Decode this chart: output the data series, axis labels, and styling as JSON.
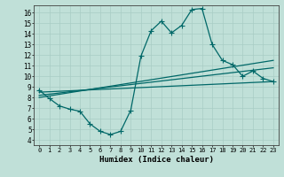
{
  "title": "",
  "xlabel": "Humidex (Indice chaleur)",
  "ylabel": "",
  "bg_color": "#c0e0d8",
  "grid_color": "#a8ccc4",
  "line_color": "#006868",
  "xlim": [
    -0.5,
    23.5
  ],
  "ylim": [
    3.5,
    16.7
  ],
  "yticks": [
    4,
    5,
    6,
    7,
    8,
    9,
    10,
    11,
    12,
    13,
    14,
    15,
    16
  ],
  "xticks": [
    0,
    1,
    2,
    3,
    4,
    5,
    6,
    7,
    8,
    9,
    10,
    11,
    12,
    13,
    14,
    15,
    16,
    17,
    18,
    19,
    20,
    21,
    22,
    23
  ],
  "series1_x": [
    0,
    1,
    2,
    3,
    4,
    5,
    6,
    7,
    8,
    9,
    10,
    11,
    12,
    13,
    14,
    15,
    16,
    17,
    18,
    19,
    20,
    21,
    22,
    23
  ],
  "series1_y": [
    8.7,
    7.9,
    7.2,
    6.9,
    6.7,
    5.5,
    4.8,
    4.5,
    4.8,
    6.8,
    11.9,
    14.3,
    15.2,
    14.1,
    14.8,
    16.3,
    16.4,
    13.0,
    11.5,
    11.1,
    10.0,
    10.5,
    9.8,
    9.5
  ],
  "series2_x": [
    0,
    23
  ],
  "series2_y": [
    8.5,
    9.5
  ],
  "series3_x": [
    0,
    23
  ],
  "series3_y": [
    8.2,
    10.8
  ],
  "series4_x": [
    0,
    23
  ],
  "series4_y": [
    8.0,
    11.5
  ],
  "markersize": 2.5,
  "linewidth": 0.9
}
